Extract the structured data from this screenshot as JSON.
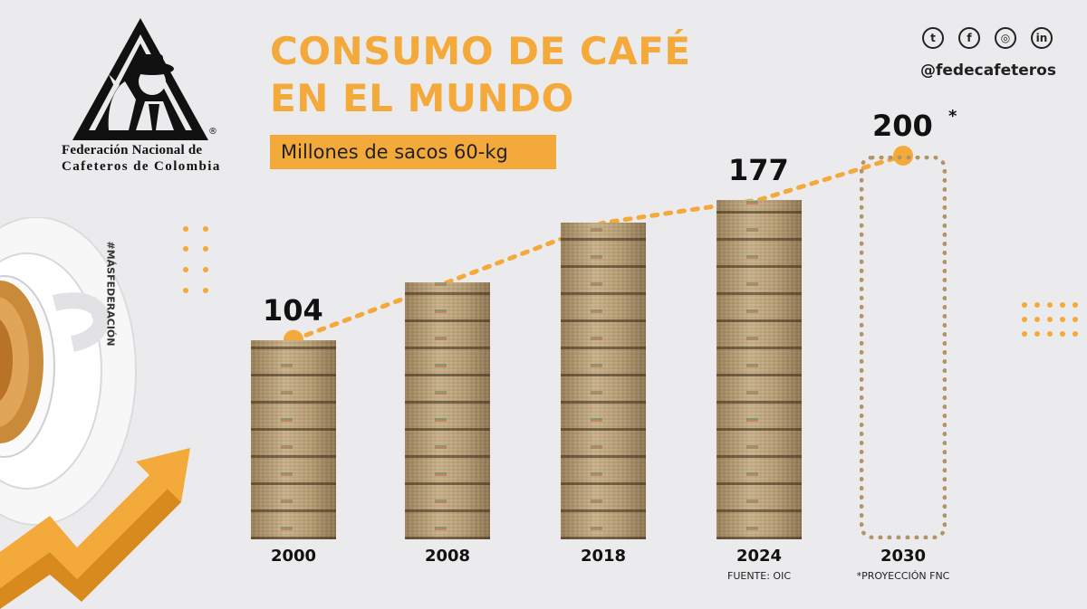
{
  "logo": {
    "line1": "Federación Nacional de",
    "line2": "Cafeteros  de  Colombia",
    "registered": "®"
  },
  "title": {
    "line1": "CONSUMO DE CAFÉ",
    "line2": "EN EL MUNDO"
  },
  "subtitle": "Millones de sacos 60-kg",
  "social": {
    "icons": [
      "twitter-icon",
      "facebook-icon",
      "instagram-icon",
      "linkedin-icon"
    ],
    "handle": "@fedecafeteros"
  },
  "hashtag": "#MÁSFEDERACIÓN",
  "colors": {
    "accent": "#f4a93b",
    "background": "#ebebed",
    "text": "#111111"
  },
  "chart_data": {
    "type": "bar",
    "title": "CONSUMO DE CAFÉ EN EL MUNDO",
    "ylabel": "Millones de sacos 60-kg",
    "categories": [
      "2000",
      "2008",
      "2018",
      "2024",
      "2030"
    ],
    "values": [
      104,
      134,
      165,
      177,
      200
    ],
    "data_labels": [
      "104",
      "",
      "",
      "177",
      "200"
    ],
    "projected": [
      false,
      false,
      false,
      false,
      true
    ],
    "projection_marker": "*",
    "trend_line": "dotted",
    "notes": {
      "2024": "FUENTE: OIC",
      "2030": "*PROYECCIÓN FNC"
    }
  }
}
